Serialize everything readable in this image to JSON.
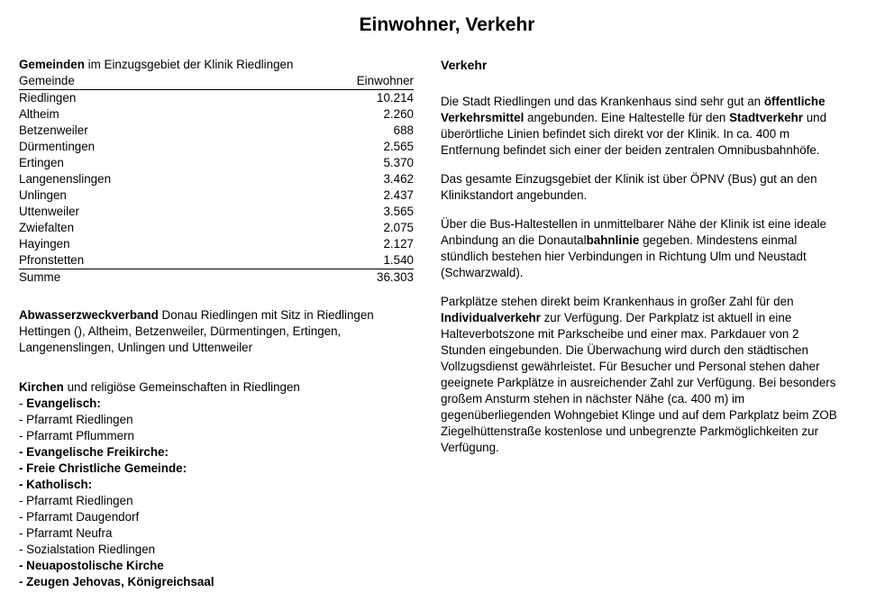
{
  "page": {
    "title": "Einwohner, Verkehr"
  },
  "left_column": {
    "gemeinden_intro": [
      {
        "t": "Gemeinden",
        "b": true
      },
      {
        "t": " im Einzugsgebiet der Klinik Riedlingen",
        "b": false
      }
    ],
    "table": {
      "header": {
        "name": "Gemeinde",
        "value": "Einwohner"
      },
      "rows": [
        {
          "name": "Riedlingen",
          "value": "10.214"
        },
        {
          "name": "Altheim",
          "value": "2.260"
        },
        {
          "name": "Betzenweiler",
          "value": "688"
        },
        {
          "name": "Dürmentingen",
          "value": "2.565"
        },
        {
          "name": "Ertingen",
          "value": "5.370"
        },
        {
          "name": "Langenenslingen",
          "value": "3.462"
        },
        {
          "name": "Unlingen",
          "value": "2.437"
        },
        {
          "name": "Uttenweiler",
          "value": "3.565"
        },
        {
          "name": "Zwiefalten",
          "value": "2.075"
        },
        {
          "name": "Hayingen",
          "value": "2.127"
        },
        {
          "name": "Pfronstetten",
          "value": "1.540"
        }
      ],
      "total": {
        "name": "Summe",
        "value": "36.303"
      }
    },
    "abwasser_paragraph": [
      [
        {
          "t": "Abwasserzweckverband",
          "b": true
        },
        {
          "t": " Donau Riedlingen mit Sitz in Riedlingen",
          "b": false
        }
      ],
      [
        {
          "t": "Hettingen (), Altheim, Betzenweiler, Dürmentingen, Ertingen,",
          "b": false
        }
      ],
      [
        {
          "t": "Langenenslingen, Unlingen und Uttenweiler",
          "b": false
        }
      ]
    ],
    "kirchen_heading": [
      {
        "t": "Kirchen",
        "b": true
      },
      {
        "t": " und religiöse Gemeinschaften in Riedlingen",
        "b": false
      }
    ],
    "kirchen_list": [
      [
        {
          "t": "- ",
          "b": false
        },
        {
          "t": "Evangelisch:",
          "b": true
        }
      ],
      [
        {
          "t": "- Pfarramt Riedlingen",
          "b": false
        }
      ],
      [
        {
          "t": "- Pfarramt Pflummern",
          "b": false
        }
      ],
      [
        {
          "t": "- Evangelische Freikirche:",
          "b": true
        }
      ],
      [
        {
          "t": "- Freie Christliche Gemeinde:",
          "b": true
        }
      ],
      [
        {
          "t": "- Katholisch:",
          "b": true
        }
      ],
      [
        {
          "t": "- Pfarramt Riedlingen",
          "b": false
        }
      ],
      [
        {
          "t": "- Pfarramt Daugendorf",
          "b": false
        }
      ],
      [
        {
          "t": "- Pfarramt Neufra",
          "b": false
        }
      ],
      [
        {
          "t": "- Sozialstation Riedlingen",
          "b": false
        }
      ],
      [
        {
          "t": "- Neuapostolische Kirche",
          "b": true
        }
      ],
      [
        {
          "t": "- Zeugen Jehovas, Königreichsaal",
          "b": true
        }
      ]
    ]
  },
  "right_column": {
    "heading": "Verkehr",
    "paragraphs": [
      [
        [
          {
            "t": "Die Stadt Riedlingen und das Krankenhaus sind sehr gut an ",
            "b": false
          },
          {
            "t": "öffentliche",
            "b": true
          }
        ],
        [
          {
            "t": "Verkehrsmittel",
            "b": true
          },
          {
            "t": " angebunden. Eine Haltestelle für den ",
            "b": false
          },
          {
            "t": "Stadtverkehr",
            "b": true
          },
          {
            "t": " und",
            "b": false
          }
        ],
        [
          {
            "t": "überörtliche Linien befindet sich direkt vor der Klinik. In ca. 400 m",
            "b": false
          }
        ],
        [
          {
            "t": "Entfernung befindet sich einer der beiden zentralen Omnibusbahnhöfe.",
            "b": false
          }
        ]
      ],
      [
        [
          {
            "t": "Das gesamte Einzugsgebiet der Klinik ist über ÖPNV (Bus) gut an den",
            "b": false
          }
        ],
        [
          {
            "t": "Klinikstandort angebunden.",
            "b": false
          }
        ]
      ],
      [
        [
          {
            "t": "Über die Bus-Haltestellen in unmittelbarer Nähe der Klinik ist eine ideale",
            "b": false
          }
        ],
        [
          {
            "t": "Anbindung an die Donautal",
            "b": false
          },
          {
            "t": "bahnlinie",
            "b": true
          },
          {
            "t": " gegeben. Mindestens einmal",
            "b": false
          }
        ],
        [
          {
            "t": "stündlich bestehen hier Verbindungen in Richtung Ulm und Neustadt",
            "b": false
          }
        ],
        [
          {
            "t": "(Schwarzwald).",
            "b": false
          }
        ]
      ],
      [
        [
          {
            "t": "Parkplätze stehen direkt beim Krankenhaus in großer Zahl für den",
            "b": false
          }
        ],
        [
          {
            "t": "Individualverkehr",
            "b": true
          },
          {
            "t": " zur Verfügung. Der Parkplatz ist aktuell in eine",
            "b": false
          }
        ],
        [
          {
            "t": "Halteverbotszone mit Parkscheibe und einer max. Parkdauer von 2",
            "b": false
          }
        ],
        [
          {
            "t": "Stunden eingebunden. Die Überwachung wird durch den städtischen",
            "b": false
          }
        ],
        [
          {
            "t": "Vollzugsdienst gewährleistet. Für Besucher und Personal stehen daher",
            "b": false
          }
        ],
        [
          {
            "t": "geeignete Parkplätze in ausreichender Zahl zur Verfügung. Bei besonders",
            "b": false
          }
        ],
        [
          {
            "t": "großem Ansturm stehen in nächster Nähe (ca. 400 m) im",
            "b": false
          }
        ],
        [
          {
            "t": "gegenüberliegenden Wohngebiet Klinge und auf dem Parkplatz beim ZOB",
            "b": false
          }
        ],
        [
          {
            "t": "Ziegelhüttenstraße kostenlose und unbegrenzte Parkmöglichkeiten zur",
            "b": false
          }
        ],
        [
          {
            "t": "Verfügung.",
            "b": false
          }
        ]
      ]
    ]
  }
}
